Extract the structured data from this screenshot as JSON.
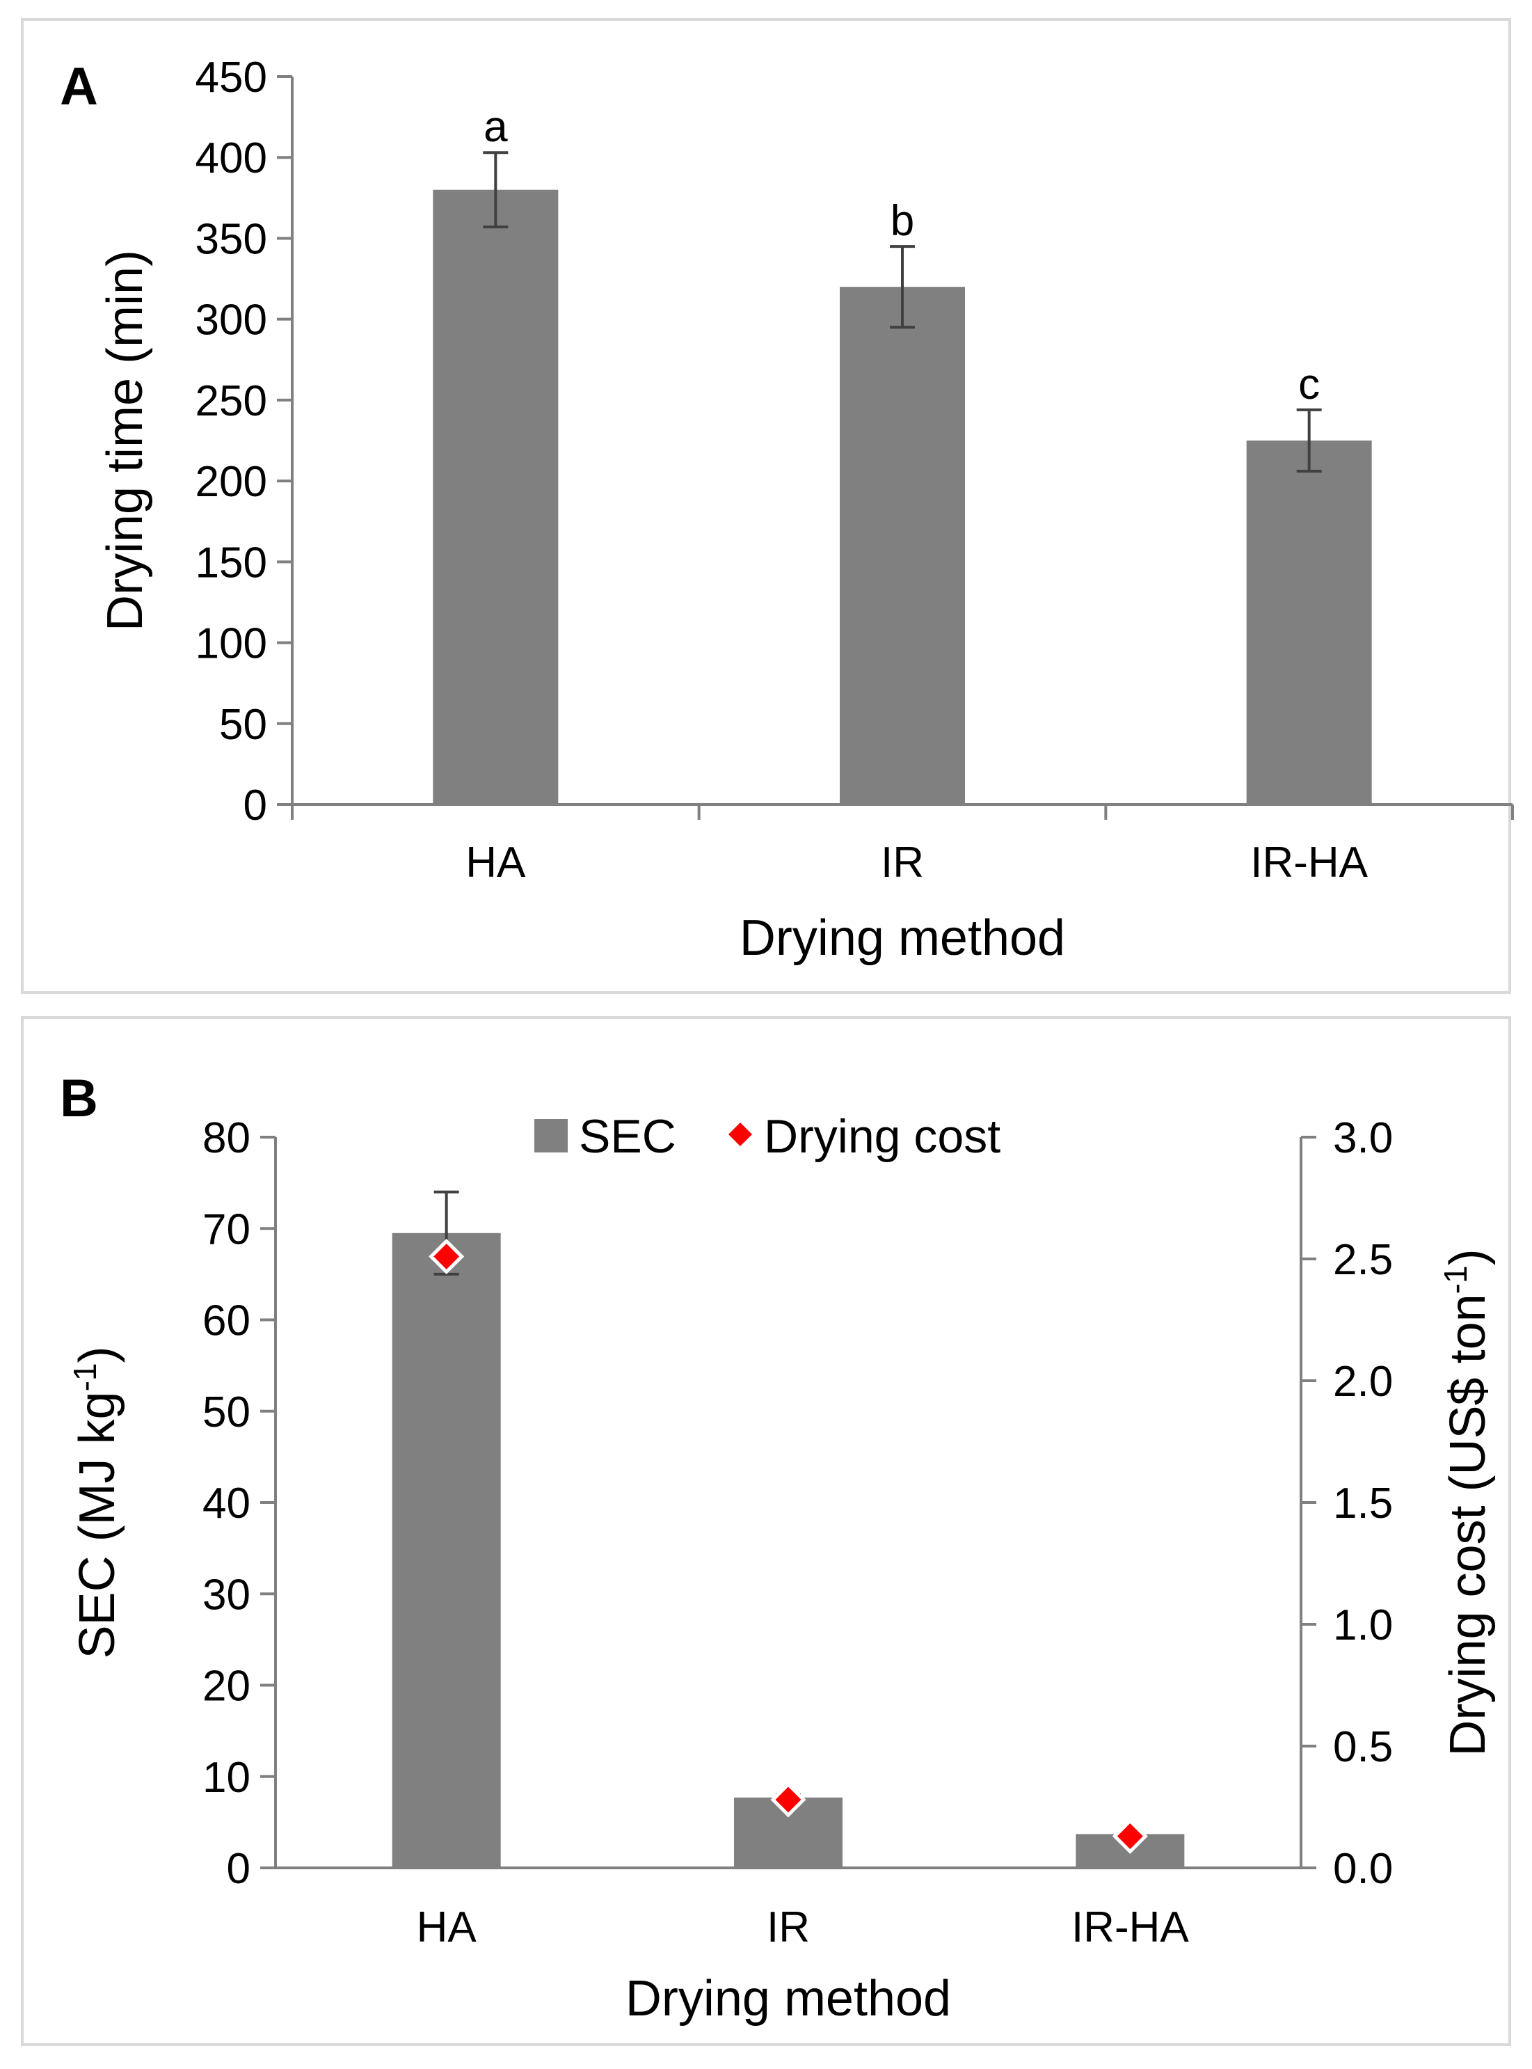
{
  "chart_data": [
    {
      "panel": "A",
      "type": "bar",
      "categories": [
        "HA",
        "IR",
        "IR-HA"
      ],
      "values": [
        380,
        320,
        225
      ],
      "errors": [
        23,
        25,
        19
      ],
      "significance": [
        "a",
        "b",
        "c"
      ],
      "xlabel": "Drying method",
      "ylabel": "Drying time (min)",
      "ylim": [
        0,
        450
      ],
      "yticks": [
        "0",
        "50",
        "100",
        "150",
        "200",
        "250",
        "300",
        "350",
        "400",
        "450"
      ],
      "bar_color": "#808080",
      "error_color": "#404040",
      "grid": false
    },
    {
      "panel": "B",
      "type": "bar",
      "categories": [
        "HA",
        "IR",
        "IR-HA"
      ],
      "series": [
        {
          "name": "SEC",
          "values": [
            69.5,
            7.7,
            3.7
          ],
          "errors": [
            4.5,
            0.3,
            0.2
          ],
          "axis": "left",
          "color": "#808080"
        },
        {
          "name": "Drying cost",
          "values": [
            2.51,
            0.28,
            0.13
          ],
          "axis": "right",
          "marker": "diamond",
          "color": "#ff0000"
        }
      ],
      "xlabel": "Drying method",
      "ylabel_left": {
        "main": "SEC (MJ kg",
        "sup": "-1",
        "end": ")"
      },
      "ylabel_right": {
        "main": "Drying cost (US$ ton",
        "sup": "-1",
        "end": ")"
      },
      "ylim_left": [
        0,
        80
      ],
      "ylim_right": [
        0,
        3.0
      ],
      "yticks_left": [
        "0",
        "10",
        "20",
        "30",
        "40",
        "50",
        "60",
        "70",
        "80"
      ],
      "yticks_right": [
        "0.0",
        "0.5",
        "1.0",
        "1.5",
        "2.0",
        "2.5",
        "3.0"
      ],
      "legend_position": "top-center",
      "grid": false
    }
  ]
}
